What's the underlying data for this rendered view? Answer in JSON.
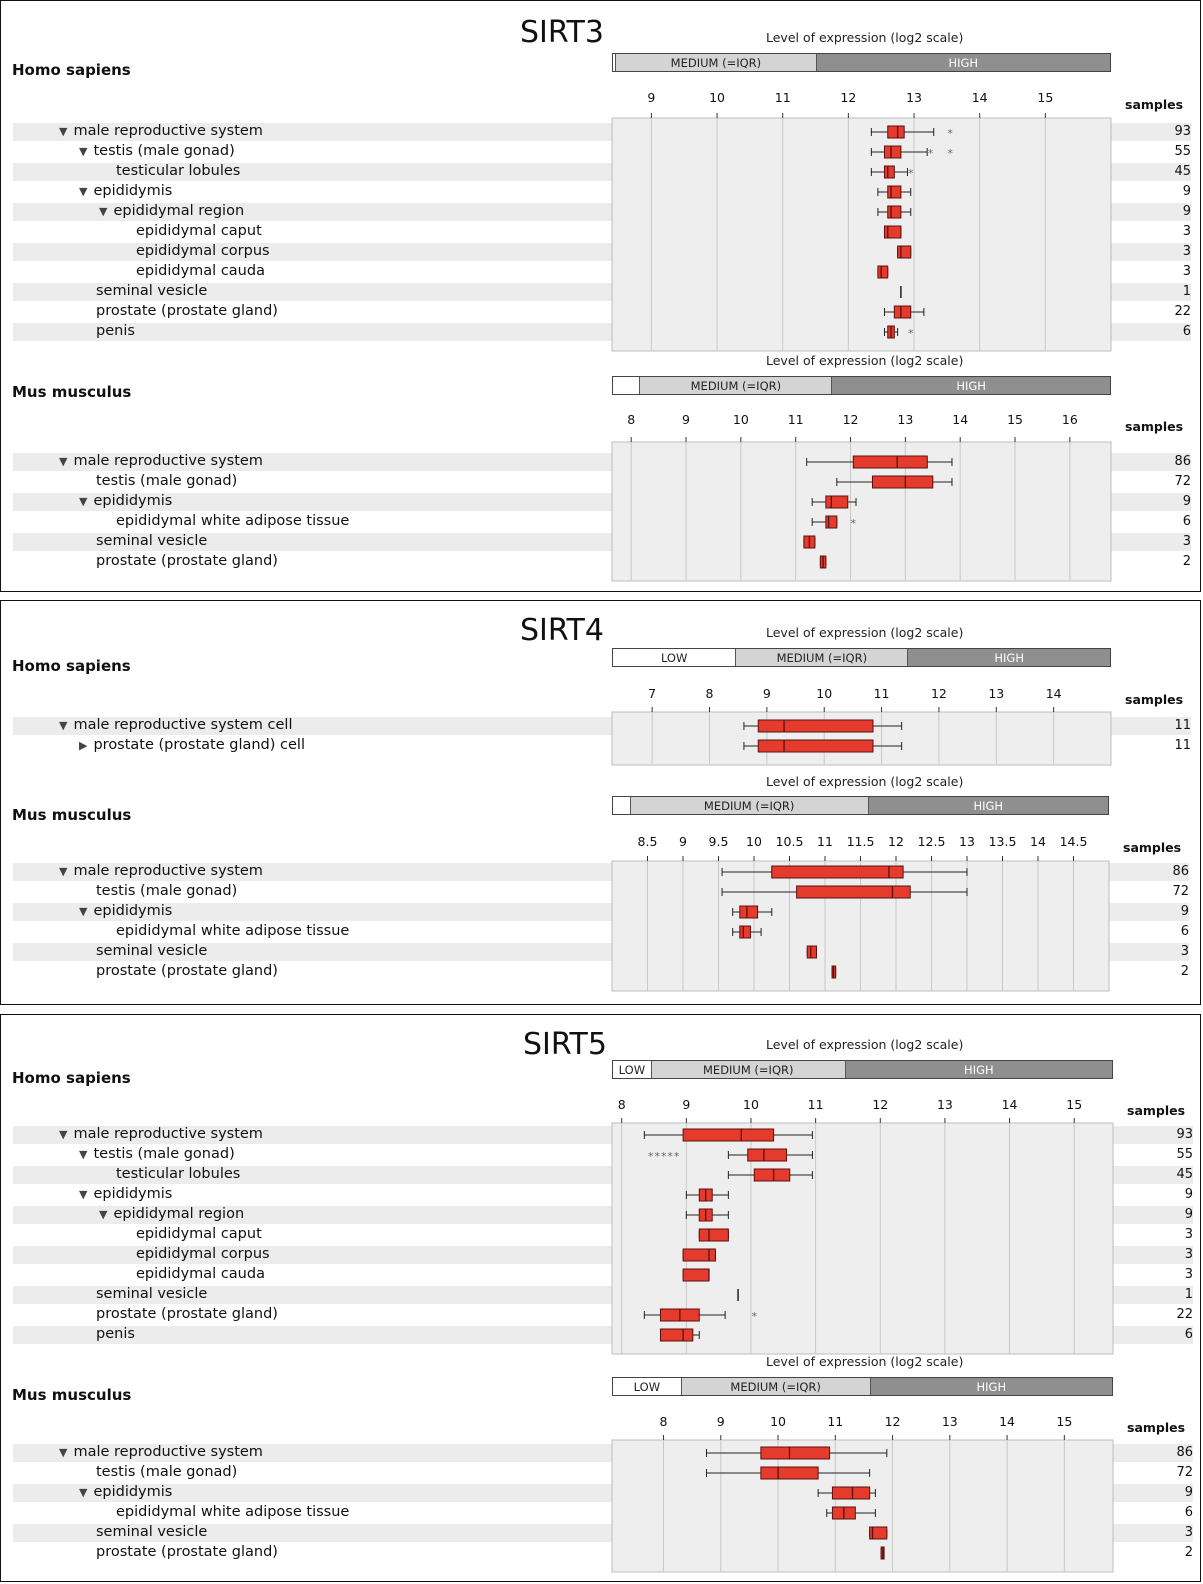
{
  "colors": {
    "box": "#e53b2c",
    "box_border": "#5a1010",
    "whisker": "#222",
    "grid": "#c8c8c8",
    "plot_bg": "#eeeeee",
    "low": "#ffffff",
    "medium": "#d4d4d4",
    "high": "#8f8f8f"
  },
  "common": {
    "level_title": "Level of expression (log2 scale)",
    "samples_label": "samples",
    "low": "LOW",
    "medium": "MEDIUM (=IQR)",
    "high": "HIGH"
  },
  "chart_data": [
    {
      "gene": "SIRT3",
      "panels": [
        {
          "species": "Homo sapiens",
          "type": "box",
          "ticks": [
            9,
            10,
            11,
            12,
            13,
            14,
            15
          ],
          "xlim": [
            8.4,
            16.0
          ],
          "level_bands": {
            "low_end": 8.45,
            "medium_end": 11.5
          },
          "rows": [
            {
              "label": "male reproductive system",
              "indent": 0,
              "arrow": "down",
              "samples": "93",
              "box": {
                "min": 12.35,
                "q1": 12.6,
                "median": 12.75,
                "q3": 12.85,
                "max": 13.3
              },
              "outliers": [
                13.55
              ]
            },
            {
              "label": "testis (male gonad)",
              "indent": 1,
              "arrow": "down",
              "samples": "55",
              "box": {
                "min": 12.35,
                "q1": 12.55,
                "median": 12.65,
                "q3": 12.8,
                "max": 13.2
              },
              "outliers": [
                13.25,
                13.55
              ]
            },
            {
              "label": "testicular lobules",
              "indent": 2,
              "arrow": "",
              "samples": "45",
              "box": {
                "min": 12.35,
                "q1": 12.55,
                "median": 12.6,
                "q3": 12.7,
                "max": 12.9
              },
              "outliers": [
                12.95
              ]
            },
            {
              "label": "epididymis",
              "indent": 1,
              "arrow": "down",
              "samples": "9",
              "box": {
                "min": 12.45,
                "q1": 12.6,
                "median": 12.65,
                "q3": 12.8,
                "max": 12.95
              },
              "outliers": []
            },
            {
              "label": "epididymal region",
              "indent": 2,
              "arrow": "down",
              "samples": "9",
              "box": {
                "min": 12.45,
                "q1": 12.6,
                "median": 12.65,
                "q3": 12.8,
                "max": 12.95
              },
              "outliers": []
            },
            {
              "label": "epididymal caput",
              "indent": 3,
              "arrow": "",
              "samples": "3",
              "box": {
                "min": 12.55,
                "q1": 12.55,
                "median": 12.6,
                "q3": 12.8,
                "max": 12.8
              },
              "outliers": []
            },
            {
              "label": "epididymal corpus",
              "indent": 3,
              "arrow": "",
              "samples": "3",
              "box": {
                "min": 12.75,
                "q1": 12.75,
                "median": 12.8,
                "q3": 12.95,
                "max": 12.95
              },
              "outliers": []
            },
            {
              "label": "epididymal cauda",
              "indent": 3,
              "arrow": "",
              "samples": "3",
              "box": {
                "min": 12.45,
                "q1": 12.45,
                "median": 12.5,
                "q3": 12.6,
                "max": 12.6
              },
              "outliers": []
            },
            {
              "label": "seminal vesicle",
              "indent": 1,
              "arrow": "",
              "samples": "1",
              "point": 12.8
            },
            {
              "label": "prostate (prostate gland)",
              "indent": 1,
              "arrow": "",
              "samples": "22",
              "box": {
                "min": 12.55,
                "q1": 12.7,
                "median": 12.8,
                "q3": 12.95,
                "max": 13.15
              },
              "outliers": []
            },
            {
              "label": "penis",
              "indent": 1,
              "arrow": "",
              "samples": "6",
              "box": {
                "min": 12.55,
                "q1": 12.6,
                "median": 12.65,
                "q3": 12.7,
                "max": 12.75
              },
              "outliers": [
                12.95
              ]
            }
          ]
        },
        {
          "species": "Mus musculus",
          "type": "box",
          "ticks": [
            8,
            9,
            10,
            11,
            12,
            13,
            14,
            15,
            16
          ],
          "xlim": [
            7.65,
            16.75
          ],
          "level_bands": {
            "low_end": 8.15,
            "medium_end": 11.65
          },
          "rows": [
            {
              "label": "male reproductive system",
              "indent": 0,
              "arrow": "down",
              "samples": "86",
              "box": {
                "min": 11.2,
                "q1": 12.05,
                "median": 12.85,
                "q3": 13.4,
                "max": 13.85
              },
              "outliers": []
            },
            {
              "label": "testis (male gonad)",
              "indent": 1,
              "arrow": "",
              "samples": "72",
              "box": {
                "min": 11.75,
                "q1": 12.4,
                "median": 13.0,
                "q3": 13.5,
                "max": 13.85
              },
              "outliers": []
            },
            {
              "label": "epididymis",
              "indent": 1,
              "arrow": "down",
              "samples": "9",
              "box": {
                "min": 11.3,
                "q1": 11.55,
                "median": 11.65,
                "q3": 11.95,
                "max": 12.1
              },
              "outliers": []
            },
            {
              "label": "epididymal white adipose tissue",
              "indent": 2,
              "arrow": "",
              "samples": "6",
              "box": {
                "min": 11.3,
                "q1": 11.55,
                "median": 11.6,
                "q3": 11.75,
                "max": 11.75
              },
              "outliers": [
                12.05
              ]
            },
            {
              "label": "seminal vesicle",
              "indent": 1,
              "arrow": "",
              "samples": "3",
              "box": {
                "min": 11.15,
                "q1": 11.15,
                "median": 11.25,
                "q3": 11.35,
                "max": 11.35
              },
              "outliers": []
            },
            {
              "label": "prostate (prostate gland)",
              "indent": 1,
              "arrow": "",
              "samples": "2",
              "box": {
                "min": 11.45,
                "q1": 11.45,
                "median": 11.5,
                "q3": 11.55,
                "max": 11.55
              },
              "outliers": []
            }
          ]
        }
      ]
    },
    {
      "gene": "SIRT4",
      "panels": [
        {
          "species": "Homo sapiens",
          "type": "box",
          "ticks": [
            7,
            8,
            9,
            10,
            11,
            12,
            13,
            14
          ],
          "xlim": [
            6.3,
            15.0
          ],
          "level_bands": {
            "low_end": 8.45,
            "medium_end": 11.45
          },
          "rows": [
            {
              "label": "male reproductive system cell",
              "indent": 0,
              "arrow": "down",
              "samples": "11",
              "box": {
                "min": 8.6,
                "q1": 8.85,
                "median": 9.3,
                "q3": 10.85,
                "max": 11.35
              },
              "outliers": []
            },
            {
              "label": "prostate (prostate gland) cell",
              "indent": 1,
              "arrow": "right",
              "samples": "11",
              "box": {
                "min": 8.6,
                "q1": 8.85,
                "median": 9.3,
                "q3": 10.85,
                "max": 11.35
              },
              "outliers": []
            }
          ]
        },
        {
          "species": "Mus musculus",
          "type": "box",
          "ticks": [
            8.5,
            9,
            9.5,
            10,
            10.5,
            11,
            11.5,
            12,
            12.5,
            13,
            13.5,
            14,
            14.5
          ],
          "xlim": [
            8.0,
            15.0
          ],
          "level_bands": {
            "low_end": 8.25,
            "medium_end": 11.6
          },
          "rows": [
            {
              "label": "male reproductive system",
              "indent": 0,
              "arrow": "down",
              "samples": "86",
              "box": {
                "min": 9.55,
                "q1": 10.25,
                "median": 11.9,
                "q3": 12.1,
                "max": 13.0
              },
              "outliers": []
            },
            {
              "label": "testis (male gonad)",
              "indent": 1,
              "arrow": "",
              "samples": "72",
              "box": {
                "min": 9.55,
                "q1": 10.6,
                "median": 11.95,
                "q3": 12.2,
                "max": 13.0
              },
              "outliers": []
            },
            {
              "label": "epididymis",
              "indent": 1,
              "arrow": "down",
              "samples": "9",
              "box": {
                "min": 9.7,
                "q1": 9.8,
                "median": 9.9,
                "q3": 10.05,
                "max": 10.25
              },
              "outliers": []
            },
            {
              "label": "epididymal white adipose tissue",
              "indent": 2,
              "arrow": "",
              "samples": "6",
              "box": {
                "min": 9.7,
                "q1": 9.8,
                "median": 9.85,
                "q3": 9.95,
                "max": 10.1
              },
              "outliers": []
            },
            {
              "label": "seminal vesicle",
              "indent": 1,
              "arrow": "",
              "samples": "3",
              "box": {
                "min": 10.75,
                "q1": 10.75,
                "median": 10.8,
                "q3": 10.88,
                "max": 10.88
              },
              "outliers": []
            },
            {
              "label": "prostate (prostate gland)",
              "indent": 1,
              "arrow": "",
              "samples": "2",
              "box": {
                "min": 11.1,
                "q1": 11.1,
                "median": 11.12,
                "q3": 11.15,
                "max": 11.15
              },
              "outliers": []
            }
          ]
        }
      ]
    },
    {
      "gene": "SIRT5",
      "panels": [
        {
          "species": "Homo sapiens",
          "type": "box",
          "ticks": [
            8,
            9,
            10,
            11,
            12,
            13,
            14,
            15
          ],
          "xlim": [
            7.85,
            15.6
          ],
          "level_bands": {
            "low_end": 8.45,
            "medium_end": 11.45
          },
          "rows": [
            {
              "label": "male reproductive system",
              "indent": 0,
              "arrow": "down",
              "samples": "93",
              "box": {
                "min": 8.35,
                "q1": 8.95,
                "median": 9.85,
                "q3": 10.35,
                "max": 10.95
              },
              "outliers": []
            },
            {
              "label": "testis (male gonad)",
              "indent": 1,
              "arrow": "down",
              "samples": "55",
              "box": {
                "min": 9.65,
                "q1": 9.95,
                "median": 10.2,
                "q3": 10.55,
                "max": 10.95
              },
              "outliers": [
                8.45,
                8.55,
                8.65,
                8.75,
                8.85
              ]
            },
            {
              "label": "testicular lobules",
              "indent": 2,
              "arrow": "",
              "samples": "45",
              "box": {
                "min": 9.65,
                "q1": 10.05,
                "median": 10.35,
                "q3": 10.6,
                "max": 10.95
              },
              "outliers": []
            },
            {
              "label": "epididymis",
              "indent": 1,
              "arrow": "down",
              "samples": "9",
              "box": {
                "min": 9.0,
                "q1": 9.2,
                "median": 9.3,
                "q3": 9.4,
                "max": 9.65
              },
              "outliers": []
            },
            {
              "label": "epididymal region",
              "indent": 2,
              "arrow": "down",
              "samples": "9",
              "box": {
                "min": 9.0,
                "q1": 9.2,
                "median": 9.3,
                "q3": 9.4,
                "max": 9.65
              },
              "outliers": []
            },
            {
              "label": "epididymal caput",
              "indent": 3,
              "arrow": "",
              "samples": "3",
              "box": {
                "min": 9.2,
                "q1": 9.2,
                "median": 9.35,
                "q3": 9.65,
                "max": 9.65
              },
              "outliers": []
            },
            {
              "label": "epididymal corpus",
              "indent": 3,
              "arrow": "",
              "samples": "3",
              "box": {
                "min": 8.95,
                "q1": 8.95,
                "median": 9.35,
                "q3": 9.45,
                "max": 9.45
              },
              "outliers": []
            },
            {
              "label": "epididymal cauda",
              "indent": 3,
              "arrow": "",
              "samples": "3",
              "box": {
                "min": 8.95,
                "q1": 8.95,
                "median": 9.35,
                "q3": 9.35,
                "max": 9.35
              },
              "outliers": []
            },
            {
              "label": "seminal vesicle",
              "indent": 1,
              "arrow": "",
              "samples": "1",
              "point": 9.8
            },
            {
              "label": "prostate (prostate gland)",
              "indent": 1,
              "arrow": "",
              "samples": "22",
              "box": {
                "min": 8.35,
                "q1": 8.6,
                "median": 8.9,
                "q3": 9.2,
                "max": 9.6
              },
              "outliers": [
                10.05
              ]
            },
            {
              "label": "penis",
              "indent": 1,
              "arrow": "",
              "samples": "6",
              "box": {
                "min": 8.6,
                "q1": 8.6,
                "median": 8.95,
                "q3": 9.1,
                "max": 9.2
              },
              "outliers": []
            }
          ]
        },
        {
          "species": "Mus musculus",
          "type": "box",
          "ticks": [
            8,
            9,
            10,
            11,
            12,
            13,
            14,
            15
          ],
          "xlim": [
            7.1,
            15.85
          ],
          "level_bands": {
            "low_end": 8.3,
            "medium_end": 11.6
          },
          "rows": [
            {
              "label": "male reproductive system",
              "indent": 0,
              "arrow": "down",
              "samples": "86",
              "box": {
                "min": 8.75,
                "q1": 9.7,
                "median": 10.2,
                "q3": 10.9,
                "max": 11.9
              },
              "outliers": []
            },
            {
              "label": "testis (male gonad)",
              "indent": 1,
              "arrow": "",
              "samples": "72",
              "box": {
                "min": 8.75,
                "q1": 9.7,
                "median": 10.0,
                "q3": 10.7,
                "max": 11.6
              },
              "outliers": []
            },
            {
              "label": "epididymis",
              "indent": 1,
              "arrow": "down",
              "samples": "9",
              "box": {
                "min": 10.7,
                "q1": 10.95,
                "median": 11.3,
                "q3": 11.6,
                "max": 11.7
              },
              "outliers": []
            },
            {
              "label": "epididymal white adipose tissue",
              "indent": 2,
              "arrow": "",
              "samples": "6",
              "box": {
                "min": 10.85,
                "q1": 10.95,
                "median": 11.15,
                "q3": 11.35,
                "max": 11.7
              },
              "outliers": []
            },
            {
              "label": "seminal vesicle",
              "indent": 1,
              "arrow": "",
              "samples": "3",
              "box": {
                "min": 11.6,
                "q1": 11.6,
                "median": 11.65,
                "q3": 11.9,
                "max": 11.9
              },
              "outliers": []
            },
            {
              "label": "prostate (prostate gland)",
              "indent": 1,
              "arrow": "",
              "samples": "2",
              "box": {
                "min": 11.8,
                "q1": 11.8,
                "median": 11.83,
                "q3": 11.85,
                "max": 11.85
              },
              "outliers": []
            }
          ]
        }
      ]
    }
  ]
}
